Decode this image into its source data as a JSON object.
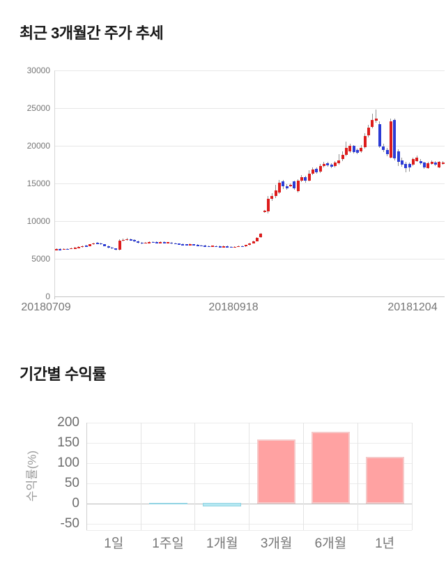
{
  "chart_data": [
    {
      "type": "candlestick",
      "title": "최근 3개월간 주가 추세",
      "x_labels": [
        "20180709",
        "20180918",
        "20181204"
      ],
      "y_ticks": [
        0,
        5000,
        10000,
        15000,
        20000,
        25000,
        30000
      ],
      "ylim": [
        0,
        30000
      ],
      "grid": true,
      "legend": "none",
      "up_color": "#dd1c1c",
      "down_color": "#2b3bd5",
      "wick_color": "#909090",
      "ohlc": [
        [
          6200,
          6350,
          6100,
          6280
        ],
        [
          6280,
          6380,
          6150,
          6220
        ],
        [
          6250,
          6400,
          6180,
          6330
        ],
        [
          6330,
          6420,
          6200,
          6270
        ],
        [
          6300,
          6480,
          6250,
          6400
        ],
        [
          6400,
          6560,
          6330,
          6480
        ],
        [
          6450,
          6640,
          6380,
          6560
        ],
        [
          6550,
          6780,
          6480,
          6700
        ],
        [
          6750,
          6820,
          6580,
          6680
        ],
        [
          6700,
          6980,
          6650,
          6900
        ],
        [
          6900,
          7130,
          6850,
          7050
        ],
        [
          7100,
          7180,
          6920,
          7000
        ],
        [
          7050,
          7120,
          6820,
          6900
        ],
        [
          6900,
          6980,
          6630,
          6700
        ],
        [
          6700,
          6780,
          6400,
          6480
        ],
        [
          6500,
          6580,
          6280,
          6350
        ],
        [
          6350,
          6420,
          6150,
          6230
        ],
        [
          6200,
          7600,
          6150,
          7400
        ],
        [
          7400,
          7650,
          7300,
          7520
        ],
        [
          7550,
          7780,
          7450,
          7630
        ],
        [
          7600,
          7700,
          7380,
          7480
        ],
        [
          7500,
          7580,
          7220,
          7300
        ],
        [
          7300,
          7380,
          7050,
          7120
        ],
        [
          7150,
          7230,
          6980,
          7060
        ],
        [
          7080,
          7230,
          7020,
          7150
        ],
        [
          7150,
          7320,
          7080,
          7230
        ],
        [
          7250,
          7320,
          7100,
          7180
        ],
        [
          7200,
          7280,
          7050,
          7120
        ],
        [
          7150,
          7280,
          7080,
          7200
        ],
        [
          7200,
          7270,
          7020,
          7100
        ],
        [
          7120,
          7260,
          7060,
          7180
        ],
        [
          7150,
          7220,
          6980,
          7050
        ],
        [
          7060,
          7140,
          6900,
          6980
        ],
        [
          7000,
          7080,
          6860,
          6930
        ],
        [
          6950,
          7020,
          6800,
          6880
        ],
        [
          6900,
          6970,
          6760,
          6830
        ],
        [
          6850,
          7000,
          6790,
          6920
        ],
        [
          6900,
          6970,
          6750,
          6820
        ],
        [
          6850,
          6920,
          6700,
          6780
        ],
        [
          6800,
          6870,
          6650,
          6720
        ],
        [
          6750,
          6820,
          6600,
          6680
        ],
        [
          6700,
          6770,
          6560,
          6630
        ],
        [
          6650,
          6790,
          6590,
          6720
        ],
        [
          6700,
          6770,
          6550,
          6620
        ],
        [
          6650,
          6720,
          6500,
          6580
        ],
        [
          6600,
          6730,
          6540,
          6660
        ],
        [
          6650,
          6720,
          6500,
          6580
        ],
        [
          6600,
          6670,
          6450,
          6530
        ],
        [
          6550,
          6690,
          6490,
          6620
        ],
        [
          6600,
          6750,
          6540,
          6680
        ],
        [
          6700,
          6770,
          6560,
          6640
        ],
        [
          6650,
          6880,
          6600,
          6810
        ],
        [
          6820,
          7090,
          6760,
          7020
        ],
        [
          7050,
          7400,
          7000,
          7320
        ],
        [
          7350,
          7900,
          7300,
          7820
        ],
        [
          7850,
          8450,
          7800,
          8350
        ],
        [
          11300,
          11500,
          11100,
          11380
        ],
        [
          11250,
          13350,
          11000,
          13000
        ],
        [
          12950,
          13700,
          12700,
          13350
        ],
        [
          13300,
          14800,
          13100,
          14100
        ],
        [
          13800,
          15500,
          13600,
          15100
        ],
        [
          15300,
          15500,
          14300,
          14600
        ],
        [
          14650,
          14900,
          14150,
          14350
        ],
        [
          14750,
          15000,
          14550,
          14800
        ],
        [
          15250,
          15350,
          14200,
          14350
        ],
        [
          13950,
          15600,
          13750,
          15350
        ],
        [
          15400,
          16100,
          15200,
          15800
        ],
        [
          15800,
          16000,
          15100,
          15350
        ],
        [
          15400,
          16800,
          15300,
          16300
        ],
        [
          16300,
          17100,
          16100,
          16850
        ],
        [
          16900,
          17100,
          16300,
          16500
        ],
        [
          16550,
          17600,
          16400,
          17300
        ],
        [
          17300,
          17900,
          17100,
          17600
        ],
        [
          17700,
          17900,
          17200,
          17400
        ],
        [
          17500,
          17700,
          17000,
          17200
        ],
        [
          17300,
          18000,
          17100,
          17800
        ],
        [
          17700,
          18900,
          17500,
          18100
        ],
        [
          18200,
          19300,
          18000,
          18800
        ],
        [
          18800,
          20600,
          18600,
          19750
        ],
        [
          19300,
          20300,
          19100,
          20000
        ],
        [
          20000,
          20100,
          19000,
          19200
        ],
        [
          19400,
          19600,
          18900,
          19100
        ],
        [
          19300,
          20100,
          19100,
          19700
        ],
        [
          19800,
          21700,
          19600,
          21300
        ],
        [
          21400,
          22800,
          21100,
          22400
        ],
        [
          22500,
          24300,
          22300,
          23400
        ],
        [
          23300,
          24800,
          23100,
          23600
        ],
        [
          22900,
          23200,
          19700,
          19900
        ],
        [
          19900,
          20300,
          19200,
          19400
        ],
        [
          19400,
          19700,
          18600,
          18900
        ],
        [
          18400,
          23600,
          18300,
          23200
        ],
        [
          23400,
          23600,
          18100,
          18300
        ],
        [
          19300,
          19500,
          17300,
          17900
        ],
        [
          18100,
          18400,
          17200,
          17500
        ],
        [
          17600,
          17900,
          16500,
          17000
        ],
        [
          17600,
          17800,
          16600,
          17100
        ],
        [
          17500,
          18400,
          17300,
          18200
        ],
        [
          18000,
          18700,
          17900,
          18400
        ],
        [
          18000,
          18200,
          17500,
          17650
        ],
        [
          17800,
          17900,
          16900,
          17100
        ],
        [
          17050,
          17900,
          16900,
          17700
        ],
        [
          17600,
          18100,
          17500,
          17900
        ],
        [
          17800,
          18000,
          17300,
          17500
        ],
        [
          17100,
          17950,
          17000,
          17850
        ],
        [
          17600,
          18000,
          17500,
          17800
        ]
      ]
    },
    {
      "type": "bar",
      "title": "기간별 수익률",
      "ylabel": "수익률(%)",
      "categories": [
        "1일",
        "1주일",
        "1개월",
        "3개월",
        "6개월",
        "1년"
      ],
      "values": [
        0,
        -1,
        -9,
        159,
        177,
        115
      ],
      "y_ticks": [
        200,
        150,
        100,
        50,
        0,
        -50
      ],
      "ylim": [
        -50,
        200
      ],
      "grid": true,
      "legend": "none",
      "positive_color": "#ffa2a2",
      "positive_border": "#f6c9c9",
      "negative_color": "#b5e8f2",
      "negative_border": "#8fd3e3"
    }
  ]
}
